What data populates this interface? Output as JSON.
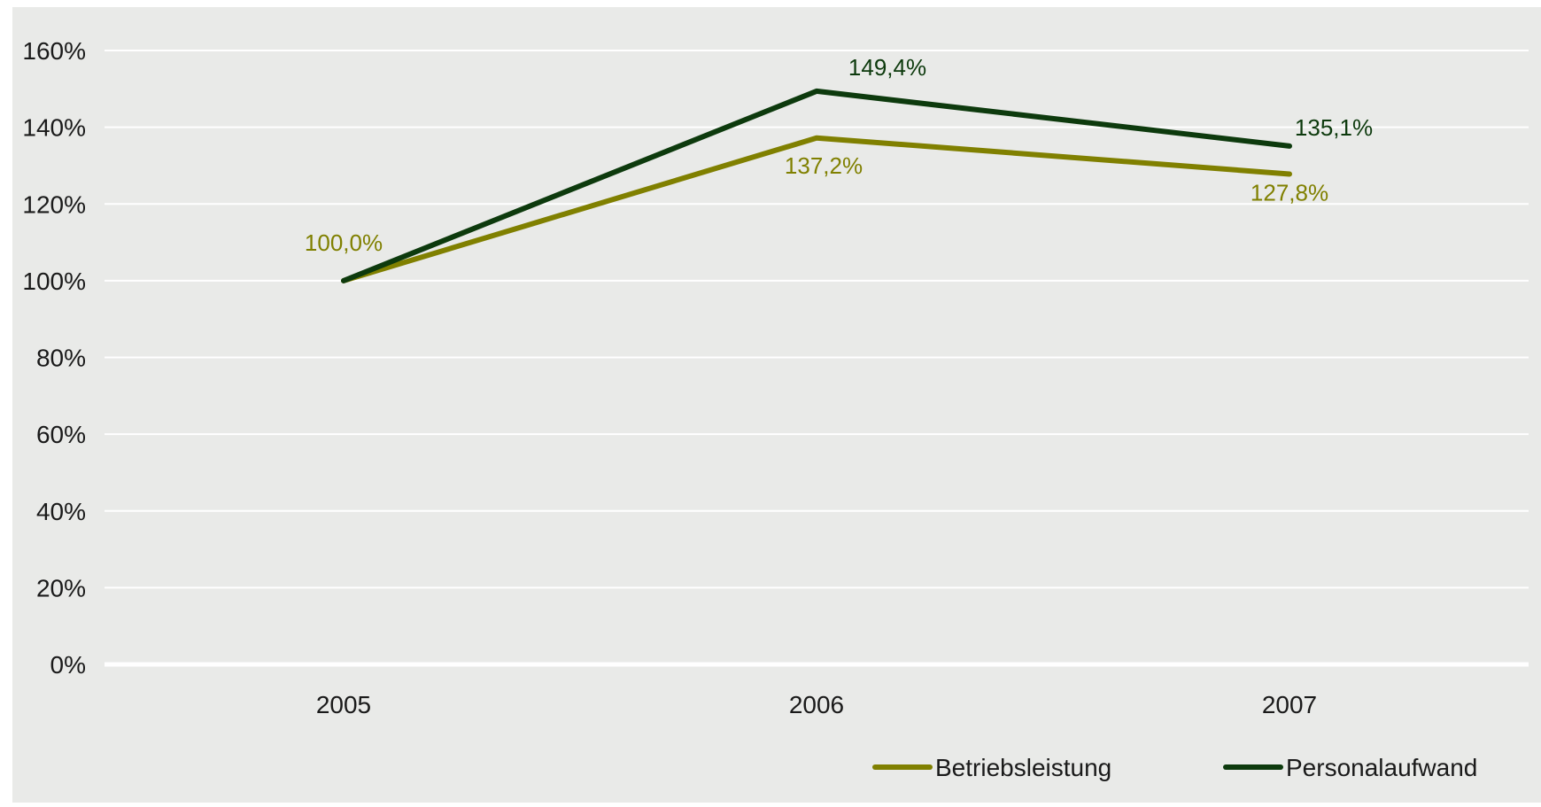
{
  "chart_data": {
    "type": "line",
    "categories": [
      "2005",
      "2006",
      "2007"
    ],
    "series": [
      {
        "name": "Betriebsleistung",
        "values": [
          100.0,
          137.2,
          127.8
        ],
        "labels": [
          "100,0%",
          "137,2%",
          "127,8%"
        ],
        "color": "#808000"
      },
      {
        "name": "Personalaufwand",
        "values": [
          100.0,
          149.4,
          135.1
        ],
        "labels": [
          "",
          "149,4%",
          "135,1%"
        ],
        "color": "#0d3a0d"
      }
    ],
    "ylim": [
      0,
      160
    ],
    "yticks": [
      0,
      20,
      40,
      60,
      80,
      100,
      120,
      140,
      160
    ],
    "ytick_labels": [
      "0%",
      "20%",
      "40%",
      "60%",
      "80%",
      "100%",
      "120%",
      "140%",
      "160%"
    ],
    "grid": true,
    "legend_position": "bottom-right",
    "colors": {
      "background": "#e9eae8",
      "gridline": "#ffffff"
    }
  }
}
